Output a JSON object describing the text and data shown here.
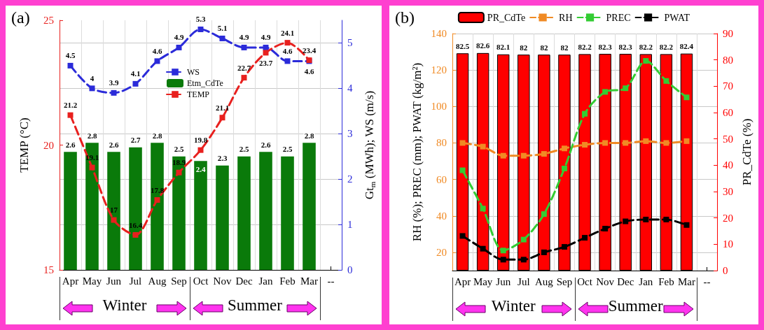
{
  "chart_data": [
    {
      "type": "bar",
      "annotations": [
        "(a)",
        "Winter",
        "Summer"
      ],
      "categories": [
        "Apr",
        "May",
        "Jun",
        "Jul",
        "Aug",
        "Sep",
        "Oct",
        "Nov",
        "Dec",
        "Jan",
        "Feb",
        "Mar",
        "--"
      ],
      "ylabel": "TEMP (°C)",
      "y2label": "Gt$_{m}$ (MWh); WS (m/s)",
      "ylim": [
        15,
        25
      ],
      "yticks": [
        15,
        20,
        25
      ],
      "y2lim": [
        0,
        5.5
      ],
      "y2ticks": [
        0,
        1,
        2,
        3,
        4,
        5
      ],
      "grid": true,
      "legend": "top",
      "marker": "square",
      "line_style": "dashed",
      "data_labels": true,
      "series": [
        {
          "name": "WS",
          "type": "line",
          "axis": "y2",
          "color": "#2b2bd9",
          "values": [
            4.5,
            4,
            3.9,
            4.1,
            4.6,
            4.9,
            5.3,
            5.1,
            4.9,
            4.9,
            4.6,
            4.6,
            null
          ]
        },
        {
          "name": "Etm_CdTe",
          "axis": "y2",
          "color": "#0a7a0a",
          "values": [
            2.6,
            2.8,
            2.6,
            2.7,
            2.8,
            2.5,
            2.4,
            2.3,
            2.5,
            2.6,
            2.5,
            2.8,
            null
          ]
        },
        {
          "name": "TEMP",
          "type": "line",
          "color": "#e8201e",
          "values": [
            21.2,
            19.1,
            17,
            16.4,
            17.8,
            18.9,
            19.8,
            21.1,
            22.7,
            23.7,
            24.1,
            23.4,
            null
          ]
        }
      ]
    },
    {
      "type": "bar",
      "annotations": [
        "(b)",
        "Winter",
        "Summer"
      ],
      "categories": [
        "Apr",
        "May",
        "Jun",
        "Jul",
        "Aug",
        "Sep",
        "Oct",
        "Nov",
        "Dec",
        "Jan",
        "Feb",
        "Mar",
        "--"
      ],
      "ylabel": "RH (%); PREC (mm); PWAT (kg/m²)",
      "y2label": "PR_CdTe (%)",
      "ylim": [
        10,
        140
      ],
      "yticks": [
        20,
        40,
        60,
        80,
        100,
        120,
        140
      ],
      "y2lim": [
        0,
        90
      ],
      "y2ticks": [
        0,
        10,
        20,
        30,
        40,
        50,
        60,
        70,
        80,
        90
      ],
      "grid": true,
      "legend": "top",
      "marker": "square",
      "line_style": "dashed",
      "series": [
        {
          "name": "PR_CdTe",
          "axis": "y2",
          "color": "#ff0000",
          "values": [
            82.5,
            82.6,
            82.1,
            82,
            82,
            82,
            82.2,
            82.3,
            82.3,
            82.2,
            82.2,
            82.4,
            null
          ],
          "value_labels": [
            "82.5",
            "82.6",
            "82.1",
            "82",
            "82",
            "82",
            "82.2",
            "82.3",
            "82.3",
            "82.2",
            "82.2",
            "82.4",
            null
          ]
        },
        {
          "name": "RH",
          "type": "line",
          "color": "#f08a24",
          "values": [
            80,
            78,
            73,
            73,
            74,
            77,
            79,
            80,
            80,
            81,
            80,
            81,
            null
          ]
        },
        {
          "name": "PREC",
          "type": "line",
          "color": "#33cc33",
          "values": [
            65,
            44,
            21,
            27,
            41,
            66,
            96,
            108,
            110,
            125,
            114,
            105,
            null
          ]
        },
        {
          "name": "PWAT",
          "type": "line",
          "color": "#000000",
          "values": [
            29,
            22,
            16,
            16,
            20,
            23,
            28,
            33,
            37,
            38,
            38,
            35,
            null
          ]
        }
      ]
    }
  ]
}
